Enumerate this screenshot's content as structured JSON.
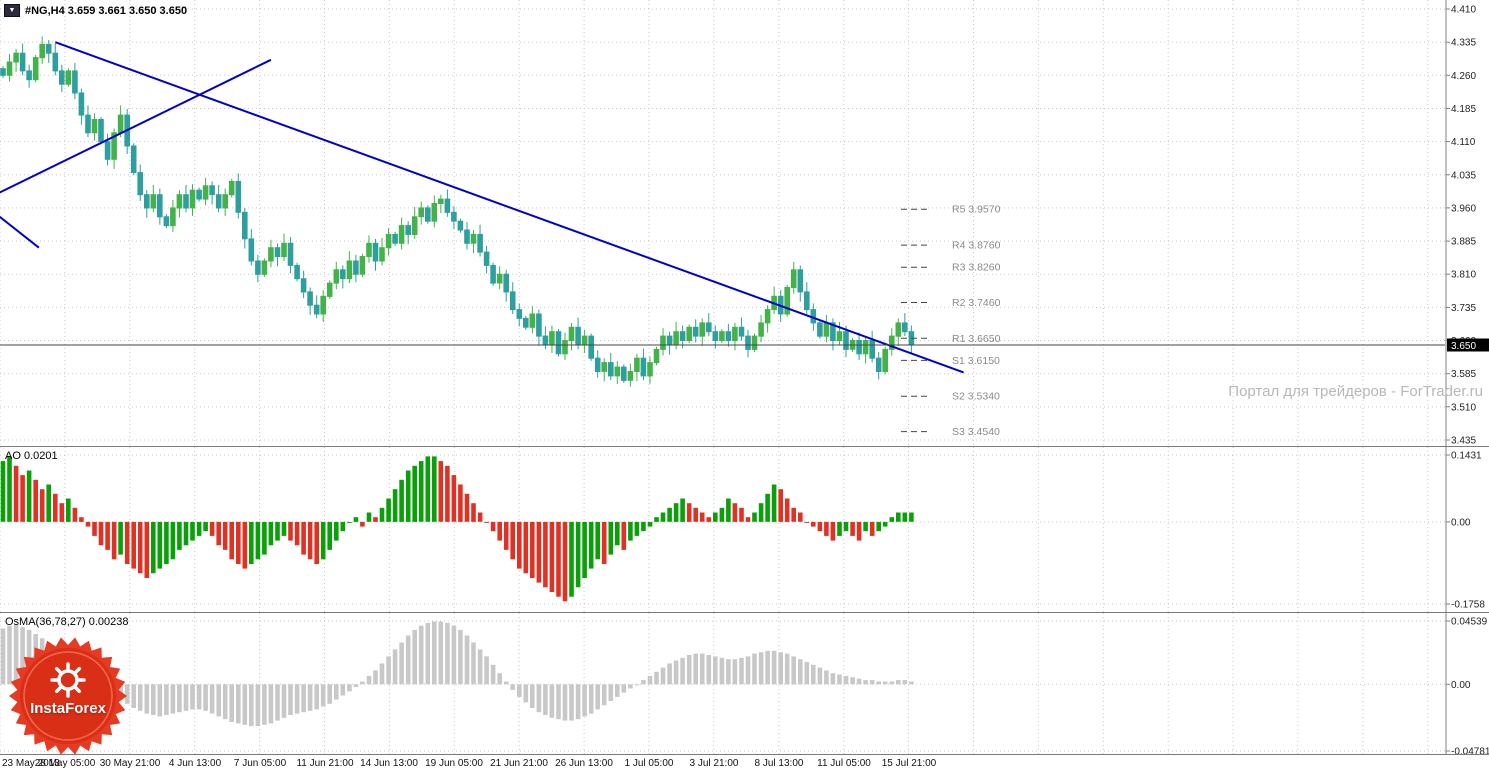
{
  "symbol_bar": {
    "dropdown_icon": "▼",
    "text": "#NG,H4 3.659 3.661 3.650 3.650"
  },
  "watermark": "Портал для трейдеров - ForTrader.ru",
  "logo": {
    "text": "InstaForex"
  },
  "panels": {
    "ao_label": "AO 0.0201",
    "osma_label": "OsMA(36,78,27) 0.00238"
  },
  "current_price": "3.650",
  "colors": {
    "grid": "#c9c9c9",
    "candle_up": "#44b24a",
    "candle_down": "#2f9e9e",
    "ao_up": "#0aa00a",
    "ao_down": "#e03224",
    "osma": "#c8c8c8",
    "trendline": "#0000cd",
    "pivot_label": "#8a8a8a",
    "price_line": "#444444",
    "axis_text": "#222222",
    "badge_bg": "#000000",
    "badge_text": "#ffffff"
  },
  "chart_data": [
    {
      "type": "candlestick",
      "title": "#NG,H4",
      "timeframe": "H4",
      "ylim": [
        3.435,
        4.41
      ],
      "y_ticks": [
        "4.410",
        "4.335",
        "4.260",
        "4.185",
        "4.110",
        "4.035",
        "3.960",
        "3.885",
        "3.810",
        "3.735",
        "3.660",
        "3.585",
        "3.510",
        "3.435"
      ],
      "x_tick_labels": [
        "23 May 2013",
        "28 May 05:00",
        "30 May 21:00",
        "4 Jun 13:00",
        "7 Jun 05:00",
        "11 Jun 21:00",
        "14 Jun 13:00",
        "19 Jun 05:00",
        "21 Jun 21:00",
        "26 Jun 13:00",
        "1 Jul 05:00",
        "3 Jul 21:00",
        "8 Jul 13:00",
        "11 Jul 05:00",
        "15 Jul 21:00"
      ],
      "closes": [
        4.26,
        4.29,
        4.31,
        4.27,
        4.25,
        4.3,
        4.33,
        4.31,
        4.27,
        4.24,
        4.27,
        4.22,
        4.17,
        4.13,
        4.16,
        4.11,
        4.07,
        4.13,
        4.17,
        4.1,
        4.04,
        3.99,
        3.96,
        3.99,
        3.94,
        3.92,
        3.96,
        3.99,
        3.96,
        4.0,
        3.98,
        4.01,
        3.99,
        3.96,
        3.99,
        4.02,
        3.95,
        3.89,
        3.84,
        3.81,
        3.84,
        3.87,
        3.85,
        3.88,
        3.83,
        3.8,
        3.77,
        3.74,
        3.72,
        3.76,
        3.79,
        3.82,
        3.8,
        3.84,
        3.81,
        3.85,
        3.88,
        3.84,
        3.87,
        3.9,
        3.88,
        3.92,
        3.9,
        3.94,
        3.96,
        3.93,
        3.97,
        3.98,
        3.95,
        3.93,
        3.91,
        3.88,
        3.9,
        3.86,
        3.83,
        3.79,
        3.81,
        3.77,
        3.73,
        3.71,
        3.69,
        3.72,
        3.67,
        3.65,
        3.68,
        3.63,
        3.66,
        3.69,
        3.65,
        3.67,
        3.62,
        3.59,
        3.61,
        3.58,
        3.6,
        3.57,
        3.59,
        3.62,
        3.58,
        3.61,
        3.64,
        3.67,
        3.65,
        3.68,
        3.66,
        3.69,
        3.67,
        3.7,
        3.68,
        3.66,
        3.68,
        3.66,
        3.69,
        3.67,
        3.64,
        3.67,
        3.7,
        3.73,
        3.76,
        3.72,
        3.78,
        3.82,
        3.77,
        3.73,
        3.7,
        3.67,
        3.7,
        3.66,
        3.68,
        3.64,
        3.66,
        3.63,
        3.66,
        3.62,
        3.59,
        3.64,
        3.67,
        3.7,
        3.68,
        3.65
      ],
      "current_price": 3.65,
      "pivot_levels": [
        {
          "label": "R5 3.9570",
          "price": 3.957
        },
        {
          "label": "R4 3.8760",
          "price": 3.876
        },
        {
          "label": "R3 3.8260",
          "price": 3.826
        },
        {
          "label": "R2 3.7460",
          "price": 3.746
        },
        {
          "label": "R1 3.6650",
          "price": 3.665
        },
        {
          "label": "S1 3.6150",
          "price": 3.615
        },
        {
          "label": "S2 3.5340",
          "price": 3.534
        },
        {
          "label": "S3 3.4540",
          "price": 3.454
        }
      ],
      "trendlines": [
        {
          "i1": 8,
          "p1": 4.335,
          "i2": 147,
          "p2": 3.588
        },
        {
          "i1": -0.5,
          "p1": 3.995,
          "i2": 41,
          "p2": 4.295
        },
        {
          "i1": -0.5,
          "p1": 3.94,
          "i2": 5.5,
          "p2": 3.87
        }
      ]
    },
    {
      "type": "bar",
      "title": "AO",
      "value_label": "0.0201",
      "ylim": [
        -0.1758,
        0.1431
      ],
      "y_ticks": [
        "0.1431",
        "0.00",
        "-0.1758"
      ],
      "color_rule": "green if value rising vs previous bar, red if falling",
      "values": [
        0.13,
        0.14,
        0.12,
        0.1,
        0.11,
        0.09,
        0.07,
        0.08,
        0.06,
        0.04,
        0.05,
        0.03,
        0.01,
        -0.01,
        -0.03,
        -0.05,
        -0.06,
        -0.08,
        -0.07,
        -0.09,
        -0.1,
        -0.11,
        -0.12,
        -0.11,
        -0.1,
        -0.09,
        -0.08,
        -0.06,
        -0.05,
        -0.04,
        -0.03,
        -0.02,
        -0.03,
        -0.05,
        -0.06,
        -0.08,
        -0.09,
        -0.1,
        -0.09,
        -0.08,
        -0.07,
        -0.05,
        -0.04,
        -0.03,
        -0.04,
        -0.05,
        -0.07,
        -0.08,
        -0.09,
        -0.08,
        -0.06,
        -0.04,
        -0.02,
        0.0,
        0.01,
        -0.01,
        0.02,
        0.01,
        0.03,
        0.05,
        0.07,
        0.09,
        0.11,
        0.12,
        0.13,
        0.14,
        0.14,
        0.13,
        0.12,
        0.1,
        0.08,
        0.06,
        0.04,
        0.02,
        0.0,
        -0.02,
        -0.04,
        -0.06,
        -0.08,
        -0.1,
        -0.11,
        -0.12,
        -0.13,
        -0.14,
        -0.15,
        -0.16,
        -0.17,
        -0.16,
        -0.14,
        -0.12,
        -0.1,
        -0.08,
        -0.09,
        -0.07,
        -0.05,
        -0.06,
        -0.04,
        -0.03,
        -0.02,
        -0.01,
        0.01,
        0.02,
        0.03,
        0.04,
        0.05,
        0.04,
        0.03,
        0.02,
        0.01,
        0.02,
        0.03,
        0.05,
        0.04,
        0.03,
        0.01,
        0.02,
        0.04,
        0.06,
        0.08,
        0.07,
        0.05,
        0.03,
        0.02,
        0.0,
        -0.01,
        -0.02,
        -0.03,
        -0.04,
        -0.03,
        -0.02,
        -0.03,
        -0.04,
        -0.02,
        -0.03,
        -0.02,
        -0.01,
        0.01,
        0.02,
        0.02,
        0.02
      ]
    },
    {
      "type": "bar",
      "title": "OsMA(36,78,27)",
      "value_label": "0.00238",
      "ylim": [
        -0.04781,
        0.04539
      ],
      "y_ticks": [
        "0.04539",
        "0.00",
        "-0.04781"
      ],
      "values": [
        0.04,
        0.042,
        0.043,
        0.041,
        0.039,
        0.036,
        0.033,
        0.03,
        0.027,
        0.024,
        0.02,
        0.016,
        0.012,
        0.008,
        0.004,
        0.0,
        -0.004,
        -0.008,
        -0.011,
        -0.014,
        -0.017,
        -0.019,
        -0.021,
        -0.022,
        -0.023,
        -0.022,
        -0.021,
        -0.02,
        -0.019,
        -0.018,
        -0.018,
        -0.019,
        -0.021,
        -0.023,
        -0.025,
        -0.027,
        -0.028,
        -0.029,
        -0.03,
        -0.03,
        -0.029,
        -0.028,
        -0.026,
        -0.024,
        -0.022,
        -0.021,
        -0.02,
        -0.019,
        -0.018,
        -0.016,
        -0.014,
        -0.011,
        -0.008,
        -0.005,
        -0.002,
        0.002,
        0.006,
        0.01,
        0.015,
        0.02,
        0.025,
        0.03,
        0.035,
        0.039,
        0.042,
        0.044,
        0.045,
        0.045,
        0.044,
        0.042,
        0.039,
        0.035,
        0.03,
        0.025,
        0.02,
        0.014,
        0.008,
        0.002,
        -0.004,
        -0.009,
        -0.013,
        -0.017,
        -0.02,
        -0.022,
        -0.024,
        -0.025,
        -0.026,
        -0.026,
        -0.025,
        -0.023,
        -0.021,
        -0.018,
        -0.015,
        -0.012,
        -0.009,
        -0.006,
        -0.003,
        0.0,
        0.003,
        0.006,
        0.009,
        0.012,
        0.015,
        0.017,
        0.019,
        0.021,
        0.022,
        0.022,
        0.021,
        0.02,
        0.019,
        0.018,
        0.018,
        0.019,
        0.02,
        0.022,
        0.023,
        0.024,
        0.024,
        0.023,
        0.022,
        0.02,
        0.018,
        0.016,
        0.014,
        0.012,
        0.01,
        0.008,
        0.007,
        0.006,
        0.005,
        0.004,
        0.003,
        0.003,
        0.002,
        0.002,
        0.002,
        0.003,
        0.003,
        0.002
      ]
    }
  ]
}
